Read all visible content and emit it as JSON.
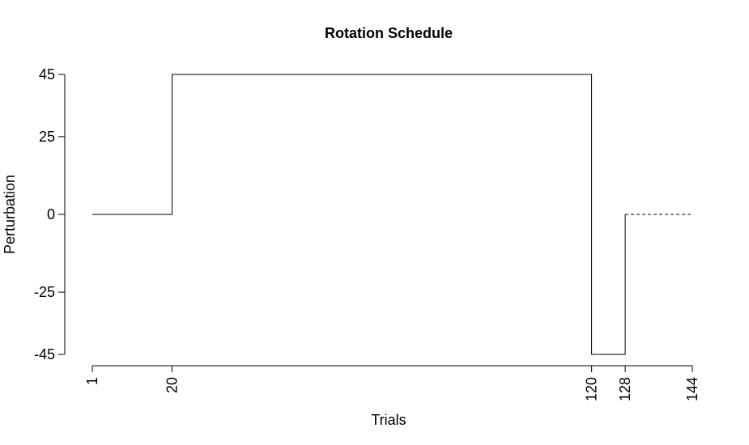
{
  "chart_data": {
    "type": "line",
    "title": "Rotation Schedule",
    "xlabel": "Trials",
    "ylabel": "Perturbation",
    "xlim": [
      1,
      144
    ],
    "ylim": [
      -45,
      45
    ],
    "x_ticks": [
      1,
      20,
      120,
      128,
      144
    ],
    "y_ticks": [
      45,
      25,
      0,
      -25,
      -45
    ],
    "grid": false,
    "legend": "none",
    "series": [
      {
        "style": "solid",
        "points": [
          [
            1,
            0
          ],
          [
            20,
            0
          ],
          [
            20,
            45
          ],
          [
            120,
            45
          ],
          [
            120,
            -45
          ],
          [
            128,
            -45
          ],
          [
            128,
            0
          ]
        ]
      },
      {
        "style": "dashed",
        "points": [
          [
            128,
            0
          ],
          [
            144,
            0
          ]
        ]
      }
    ]
  }
}
